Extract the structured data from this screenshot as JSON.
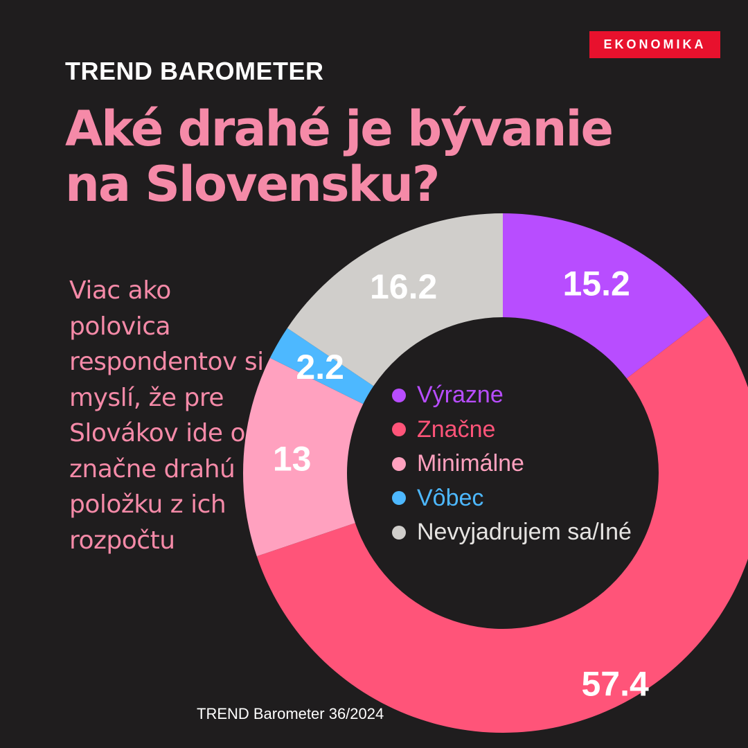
{
  "badge": "EKONOMIKA",
  "kicker": "TREND BAROMETER",
  "title_line1": "Aké drahé je bývanie",
  "title_line2": "na Slovensku?",
  "description": "Viac ako polovica respondentov si myslí, že pre Slovákov ide o značne drahú položku z ich rozpočtu",
  "source": "TREND Barometer 36/2024",
  "colors": {
    "background": "#1f1d1e",
    "accent_pink": "#f58aa8",
    "badge_red": "#e8112d"
  },
  "chart_data": {
    "type": "pie",
    "donut": true,
    "start_angle_deg": 0,
    "direction": "clockwise",
    "legend_position": "center",
    "series": [
      {
        "name": "Výrazne",
        "value": 15.2,
        "label": "15.2",
        "color": "#b84dff"
      },
      {
        "name": "Značne",
        "value": 57.4,
        "label": "57.4",
        "color": "#ff5479"
      },
      {
        "name": "Minimálne",
        "value": 13,
        "label": "13",
        "color": "#ffa1bf"
      },
      {
        "name": "Vôbec",
        "value": 2.2,
        "label": "2.2",
        "color": "#4db8ff"
      },
      {
        "name": "Nevyjadrujem sa/Iné",
        "value": 16.2,
        "label": "16.2",
        "color": "#d0cecb"
      }
    ]
  }
}
